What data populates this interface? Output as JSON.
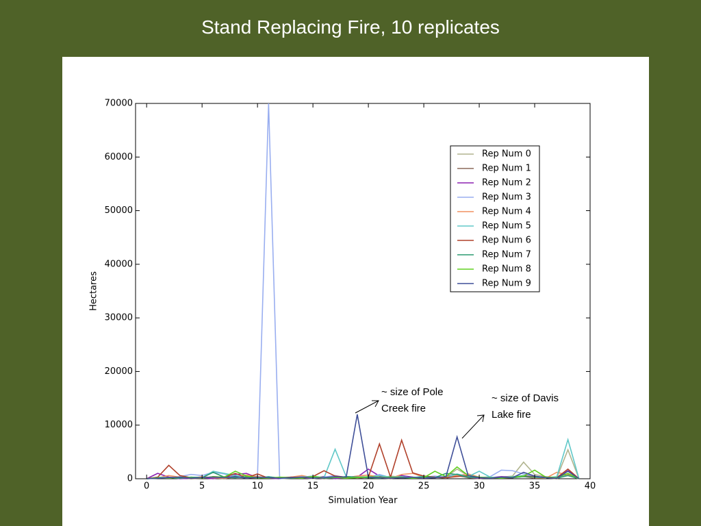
{
  "slide": {
    "title": "Stand Replacing Fire, 10 replicates"
  },
  "chart_data": {
    "type": "line",
    "x_label": "Simulation Year",
    "y_label": "Hectares",
    "x": [
      0,
      1,
      2,
      3,
      4,
      5,
      6,
      7,
      8,
      9,
      10,
      11,
      12,
      13,
      14,
      15,
      16,
      17,
      18,
      19,
      20,
      21,
      22,
      23,
      24,
      25,
      26,
      27,
      28,
      29,
      30,
      31,
      32,
      33,
      34,
      35,
      36,
      37,
      38,
      39
    ],
    "xlim": [
      -1,
      40
    ],
    "xticks": [
      0,
      5,
      10,
      15,
      20,
      25,
      30,
      35,
      40
    ],
    "ylim": [
      0,
      70000
    ],
    "yticks": [
      0,
      10000,
      20000,
      30000,
      40000,
      50000,
      60000,
      70000
    ],
    "legend": "upper right",
    "annotations": [
      {
        "lines": [
          "~ size of Pole",
          "Creek fire"
        ]
      },
      {
        "lines": [
          "~ size of Davis",
          "Lake fire"
        ]
      }
    ],
    "series": [
      {
        "name": "Rep Num 0",
        "color": "#b0b48e",
        "values": [
          0,
          200,
          100,
          300,
          0,
          200,
          100,
          400,
          600,
          100,
          300,
          200,
          0,
          100,
          200,
          0,
          300,
          200,
          100,
          400,
          200,
          100,
          500,
          300,
          200,
          100,
          400,
          300,
          1800,
          600,
          200,
          100,
          300,
          500,
          3100,
          800,
          400,
          200,
          5400,
          0
        ]
      },
      {
        "name": "Rep Num 1",
        "color": "#8b6a5a",
        "values": [
          0,
          100,
          300,
          200,
          0,
          100,
          200,
          0,
          500,
          200,
          100,
          400,
          0,
          200,
          100,
          300,
          0,
          200,
          400,
          100,
          300,
          200,
          0,
          400,
          100,
          200,
          300,
          100,
          600,
          200,
          0,
          300,
          100,
          200,
          400,
          100,
          200,
          0,
          900,
          0
        ]
      },
      {
        "name": "Rep Num 2",
        "color": "#8b20b0",
        "values": [
          0,
          1000,
          300,
          0,
          100,
          200,
          0,
          300,
          800,
          1000,
          200,
          100,
          0,
          300,
          200,
          100,
          400,
          0,
          200,
          300,
          1800,
          500,
          200,
          600,
          300,
          100,
          200,
          400,
          800,
          300,
          100,
          200,
          400,
          300,
          600,
          200,
          300,
          100,
          1500,
          0
        ]
      },
      {
        "name": "Rep Num 3",
        "color": "#99aef0",
        "values": [
          0,
          300,
          200,
          400,
          800,
          600,
          1200,
          900,
          300,
          200,
          500,
          70000,
          0,
          200,
          400,
          100,
          300,
          600,
          200,
          500,
          300,
          800,
          200,
          400,
          200,
          300,
          500,
          200,
          700,
          300,
          200,
          400,
          1600,
          1500,
          900,
          400,
          200,
          300,
          600,
          0
        ]
      },
      {
        "name": "Rep Num 4",
        "color": "#f09060",
        "values": [
          0,
          200,
          600,
          300,
          100,
          400,
          200,
          100,
          300,
          700,
          400,
          200,
          100,
          300,
          600,
          200,
          100,
          300,
          200,
          500,
          700,
          300,
          100,
          800,
          1000,
          300,
          200,
          400,
          600,
          900,
          300,
          100,
          200,
          300,
          400,
          200,
          100,
          1200,
          700,
          0
        ]
      },
      {
        "name": "Rep Num 5",
        "color": "#60c8c8",
        "values": [
          0,
          300,
          200,
          100,
          300,
          200,
          1400,
          1000,
          600,
          300,
          200,
          400,
          100,
          200,
          300,
          500,
          200,
          5500,
          400,
          300,
          200,
          600,
          300,
          400,
          200,
          500,
          300,
          200,
          900,
          400,
          1400,
          300,
          200,
          400,
          600,
          300,
          200,
          400,
          7300,
          0
        ]
      },
      {
        "name": "Rep Num 6",
        "color": "#b0402a",
        "values": [
          0,
          300,
          2500,
          600,
          200,
          100,
          400,
          300,
          1000,
          200,
          900,
          100,
          200,
          300,
          200,
          400,
          1500,
          500,
          300,
          200,
          300,
          6500,
          300,
          7200,
          1100,
          500,
          300,
          200,
          400,
          600,
          200,
          100,
          300,
          200,
          500,
          400,
          300,
          200,
          1800,
          0
        ]
      },
      {
        "name": "Rep Num 7",
        "color": "#2a9a70",
        "values": [
          0,
          100,
          200,
          100,
          300,
          200,
          1200,
          300,
          200,
          400,
          100,
          300,
          200,
          100,
          200,
          300,
          100,
          200,
          400,
          300,
          200,
          100,
          300,
          200,
          100,
          400,
          200,
          1000,
          800,
          300,
          200,
          100,
          300,
          200,
          400,
          300,
          200,
          100,
          600,
          0
        ]
      },
      {
        "name": "Rep Num 8",
        "color": "#60d020",
        "values": [
          0,
          200,
          100,
          300,
          200,
          100,
          400,
          300,
          1400,
          500,
          200,
          100,
          300,
          200,
          100,
          400,
          200,
          300,
          100,
          200,
          400,
          300,
          200,
          300,
          100,
          200,
          1400,
          400,
          2200,
          600,
          300,
          200,
          100,
          300,
          500,
          1600,
          300,
          200,
          1000,
          0
        ]
      },
      {
        "name": "Rep Num 9",
        "color": "#3f4f98",
        "values": [
          0,
          100,
          200,
          300,
          100,
          200,
          300,
          200,
          400,
          100,
          300,
          200,
          100,
          200,
          300,
          100,
          200,
          400,
          300,
          12000,
          300,
          200,
          100,
          200,
          300,
          100,
          200,
          400,
          7800,
          600,
          200,
          100,
          300,
          200,
          1200,
          500,
          200,
          100,
          1400,
          0
        ]
      }
    ]
  }
}
